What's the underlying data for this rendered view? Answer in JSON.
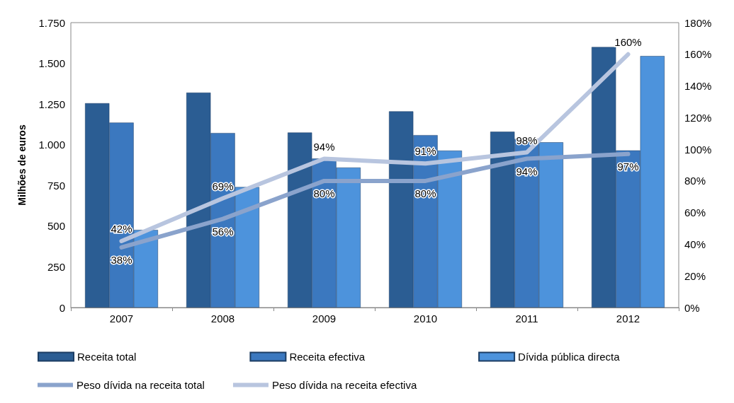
{
  "chart_data": {
    "type": "bar",
    "ylabel": "Milhões de euros",
    "categories": [
      "2007",
      "2008",
      "2009",
      "2010",
      "2011",
      "2012"
    ],
    "series": [
      {
        "name": "Receita total",
        "color": "#2b5d93",
        "values": [
          1255,
          1320,
          1075,
          1205,
          1080,
          1600
        ]
      },
      {
        "name": "Receita efectiva",
        "color": "#3b78bf",
        "values": [
          1136,
          1072,
          915,
          1059,
          1036,
          965
        ]
      },
      {
        "name": "Dívida pública directa",
        "color": "#4d93dc",
        "values": [
          477,
          740,
          860,
          964,
          1015,
          1545
        ]
      },
      {
        "name": "Peso dívida na receita total",
        "type": "line",
        "axis": "y2",
        "color": "#8aa3cc",
        "values": [
          38,
          56,
          80,
          80,
          94,
          97
        ],
        "value_labels": [
          "38%",
          "56%",
          "80%",
          "80%",
          "94%",
          "97%"
        ]
      },
      {
        "name": "Peso dívida na receita efectiva",
        "type": "line",
        "axis": "y2",
        "color": "#b8c5df",
        "values": [
          42,
          69,
          94,
          91,
          98,
          160
        ],
        "value_labels": [
          "42%",
          "69%",
          "94%",
          "91%",
          "98%",
          "160%"
        ]
      }
    ],
    "ylim": [
      0,
      1750
    ],
    "yticks": [
      0,
      {
        "value": 250,
        "label": "250"
      },
      {
        "value": 500,
        "label": "500"
      },
      {
        "value": 750,
        "label": "750"
      },
      {
        "value": 1000,
        "label": "1.000"
      },
      {
        "value": 1250,
        "label": "1.250"
      },
      {
        "value": 1500,
        "label": "1.500"
      },
      {
        "value": 1750,
        "label": "1.750"
      }
    ],
    "y2lim": [
      0,
      180
    ],
    "y2ticks": [
      {
        "value": 0,
        "label": "0%"
      },
      {
        "value": 20,
        "label": "20%"
      },
      {
        "value": 40,
        "label": "40%"
      },
      {
        "value": 60,
        "label": "60%"
      },
      {
        "value": 80,
        "label": "80%"
      },
      {
        "value": 100,
        "label": "100%"
      },
      {
        "value": 120,
        "label": "120%"
      },
      {
        "value": 140,
        "label": "140%"
      },
      {
        "value": 160,
        "label": "160%"
      },
      {
        "value": 180,
        "label": "180%"
      }
    ],
    "legend": "bottom",
    "grid": false,
    "marker": "none"
  }
}
